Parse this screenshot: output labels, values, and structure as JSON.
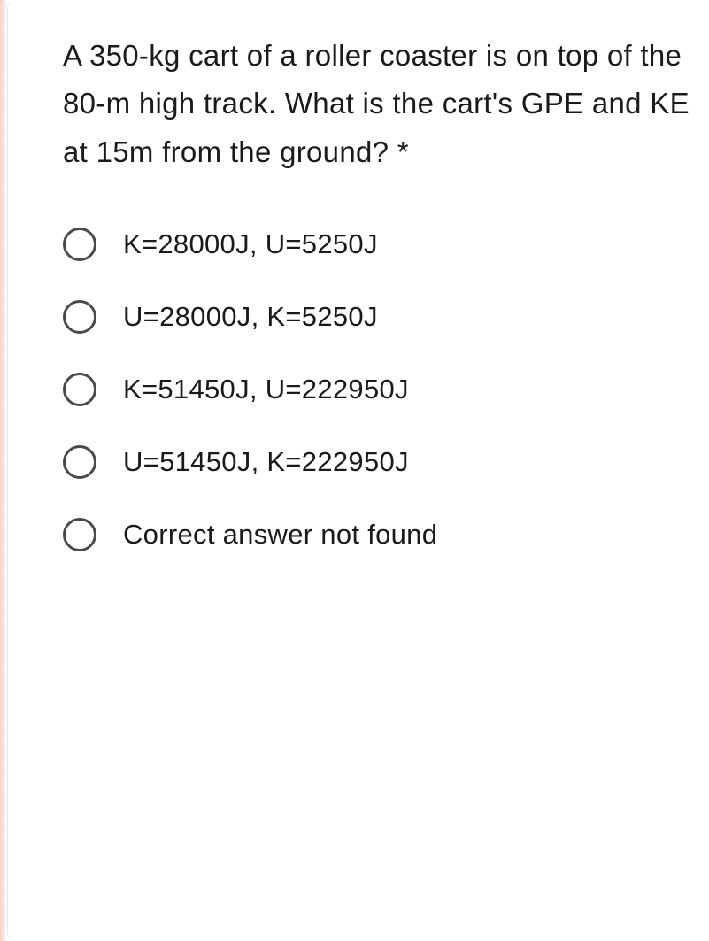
{
  "question": {
    "text": "A 350-kg cart of a roller coaster is on top of the 80-m high track. What is the cart's GPE and KE at 15m from the ground?",
    "required_marker": "*"
  },
  "options": [
    {
      "label": "K=28000J, U=5250J"
    },
    {
      "label": "U=28000J, K=5250J"
    },
    {
      "label": "K=51450J, U=222950J"
    },
    {
      "label": "U=51450J, K=222950J"
    },
    {
      "label": "Correct answer not found"
    }
  ],
  "style": {
    "background_color": "#ffffff",
    "text_color": "#1a1a1a",
    "radio_border_color": "#4a4a4a",
    "question_fontsize": 33,
    "option_fontsize": 31,
    "left_accent_color": "#f8d0c8"
  }
}
